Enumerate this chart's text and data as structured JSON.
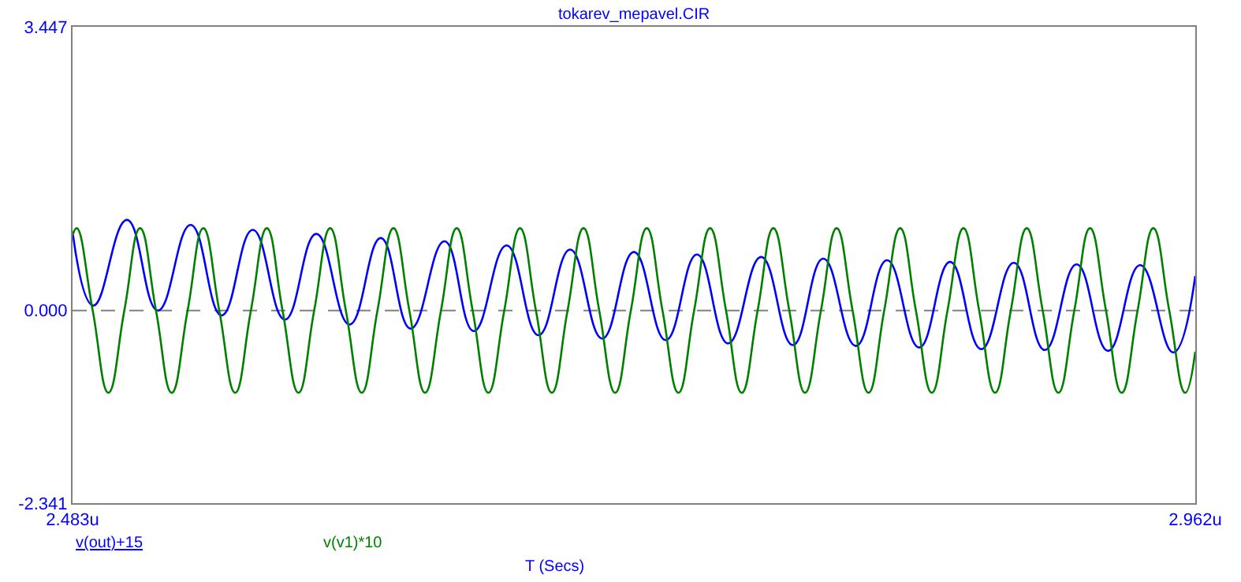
{
  "chart_data": {
    "type": "line",
    "title": "tokarev_mepavel.CIR",
    "xlabel": "T (Secs)",
    "xlim": [
      2.483,
      2.962
    ],
    "xticks": [
      {
        "value": 2.483,
        "label": "2.483u"
      },
      {
        "value": 2.962,
        "label": "2.962u"
      }
    ],
    "ylim": [
      -2.341,
      3.447
    ],
    "yticks": [
      {
        "value": 3.447,
        "label": "3.447"
      },
      {
        "value": 0,
        "label": "0.000"
      },
      {
        "value": -2.341,
        "label": "-2.341"
      }
    ],
    "grid": false,
    "legend": "bottom",
    "marker": "none",
    "line_style": "solid",
    "ref_lines": [
      {
        "axis": "y",
        "value": 0,
        "color": "#808080",
        "line_style": "dashed"
      }
    ],
    "series": [
      {
        "name": "v(out)+15",
        "color": "#0000ff",
        "x": [
          2.483,
          2.4919,
          2.5062,
          2.5194,
          2.5334,
          2.5466,
          2.5599,
          2.5736,
          2.587,
          2.6012,
          2.6145,
          2.6273,
          2.6417,
          2.6542,
          2.6682,
          2.6818,
          2.6953,
          2.709,
          2.7225,
          2.7361,
          2.7494,
          2.7627,
          2.7768,
          2.7903,
          2.8033,
          2.8172,
          2.8305,
          2.8442,
          2.8574,
          2.8707,
          2.8846,
          2.8978,
          2.9114,
          2.9248,
          2.9385,
          2.9526,
          2.962
        ],
        "values": [
          0.96,
          0.06,
          1.1,
          0.0,
          1.04,
          -0.06,
          0.98,
          -0.11,
          0.93,
          -0.17,
          0.88,
          -0.22,
          0.84,
          -0.25,
          0.79,
          -0.3,
          0.74,
          -0.34,
          0.71,
          -0.36,
          0.68,
          -0.4,
          0.65,
          -0.42,
          0.63,
          -0.43,
          0.61,
          -0.45,
          0.59,
          -0.47,
          0.58,
          -0.48,
          0.56,
          -0.49,
          0.55,
          -0.51,
          0.42
        ]
      },
      {
        "name": "v(v1)*10",
        "color": "#008000",
        "x": [
          2.483,
          2.4848,
          2.4916,
          2.4983,
          2.5051,
          2.5118,
          2.5186,
          2.5253,
          2.5321,
          2.5388,
          2.5456,
          2.5524,
          2.5591,
          2.5659,
          2.5726,
          2.5794,
          2.5861,
          2.5929,
          2.5996,
          2.6064,
          2.6131,
          2.6199,
          2.6267,
          2.6334,
          2.6402,
          2.6469,
          2.6537,
          2.6604,
          2.6672,
          2.6739,
          2.6807,
          2.6875,
          2.6942,
          2.701,
          2.7077,
          2.7145,
          2.7212,
          2.728,
          2.7347,
          2.7415,
          2.7482,
          2.755,
          2.7618,
          2.7685,
          2.7753,
          2.782,
          2.7888,
          2.7955,
          2.8023,
          2.809,
          2.8158,
          2.8226,
          2.8293,
          2.8361,
          2.8428,
          2.8496,
          2.8563,
          2.8631,
          2.8698,
          2.8766,
          2.8833,
          2.8901,
          2.8969,
          2.9036,
          2.9104,
          2.9171,
          2.9239,
          2.9306,
          2.9374,
          2.9441,
          2.9509,
          2.9577,
          2.962
        ],
        "values": [
          0.91,
          1,
          0,
          -1,
          0,
          1,
          0,
          -1,
          0,
          1,
          0,
          -1,
          0,
          1,
          0,
          -1,
          0,
          1,
          0,
          -1,
          0,
          1,
          0,
          -1,
          0,
          1,
          0,
          -1,
          0,
          1,
          0,
          -1,
          0,
          1,
          0,
          -1,
          0,
          1,
          0,
          -1,
          0,
          1,
          0,
          -1,
          0,
          1,
          0,
          -1,
          0,
          1,
          0,
          -1,
          0,
          1,
          0,
          -1,
          0,
          1,
          0,
          -1,
          0,
          1,
          0,
          -1,
          0,
          1,
          0,
          -1,
          0,
          1,
          0,
          -1,
          -0.5
        ]
      }
    ]
  }
}
